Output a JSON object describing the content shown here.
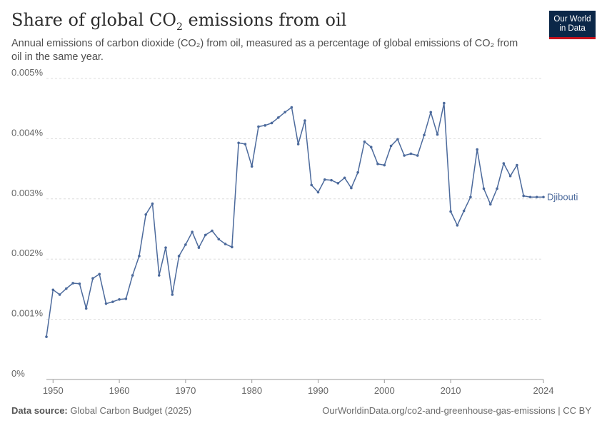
{
  "header": {
    "title_main": "Share of global CO",
    "title_sub": "2",
    "title_rest": " emissions from oil",
    "subtitle": "Annual emissions of carbon dioxide (CO₂) from oil, measured as a percentage of global emissions of CO₂ from oil in the same year."
  },
  "logo": {
    "line1": "Our World",
    "line2": "in Data"
  },
  "footer": {
    "source_label": "Data source:",
    "source_value": " Global Carbon Budget (2025)",
    "url": "OurWorldinData.org/co2-and-greenhouse-gas-emissions | CC BY"
  },
  "colors": {
    "series": "#4c6a9c",
    "grid": "#dddddd",
    "logo_bg": "#0b2748",
    "logo_accent": "#c4121c"
  },
  "chart_data": {
    "type": "line",
    "ylim": [
      0,
      0.005
    ],
    "xlim": [
      1949,
      2024
    ],
    "y_ticks": [
      0,
      0.001,
      0.002,
      0.003,
      0.004,
      0.005
    ],
    "y_tick_labels": [
      "0%",
      "0.001%",
      "0.002%",
      "0.003%",
      "0.004%",
      "0.005%"
    ],
    "x_ticks": [
      1950,
      1960,
      1970,
      1980,
      1990,
      2000,
      2010,
      2024
    ],
    "x_tick_labels": [
      "1950",
      "1960",
      "1970",
      "1980",
      "1990",
      "2000",
      "2010",
      "2024"
    ],
    "grid": "horizontal dashed",
    "series": [
      {
        "name": "Djibouti",
        "x": [
          1949,
          1950,
          1951,
          1952,
          1953,
          1954,
          1955,
          1956,
          1957,
          1958,
          1959,
          1960,
          1961,
          1962,
          1963,
          1964,
          1965,
          1966,
          1967,
          1968,
          1969,
          1970,
          1971,
          1972,
          1973,
          1974,
          1975,
          1976,
          1977,
          1978,
          1979,
          1980,
          1981,
          1982,
          1983,
          1984,
          1985,
          1986,
          1987,
          1988,
          1989,
          1990,
          1991,
          1992,
          1993,
          1994,
          1995,
          1996,
          1997,
          1998,
          1999,
          2000,
          2001,
          2002,
          2003,
          2004,
          2005,
          2006,
          2007,
          2008,
          2009,
          2010,
          2011,
          2012,
          2013,
          2014,
          2015,
          2016,
          2017,
          2018,
          2019,
          2020,
          2021,
          2022,
          2023,
          2024
        ],
        "values": [
          0.00071,
          0.00149,
          0.00141,
          0.00151,
          0.0016,
          0.00159,
          0.00118,
          0.00168,
          0.00175,
          0.00126,
          0.00129,
          0.00133,
          0.00134,
          0.00173,
          0.00205,
          0.00274,
          0.00292,
          0.00173,
          0.00219,
          0.00141,
          0.00205,
          0.00224,
          0.00245,
          0.00219,
          0.0024,
          0.00247,
          0.00233,
          0.00225,
          0.0022,
          0.00393,
          0.00391,
          0.00354,
          0.0042,
          0.00422,
          0.00426,
          0.00435,
          0.00444,
          0.00452,
          0.00391,
          0.0043,
          0.00323,
          0.00311,
          0.00332,
          0.00331,
          0.00326,
          0.00335,
          0.00318,
          0.00344,
          0.00395,
          0.00386,
          0.00358,
          0.00356,
          0.00388,
          0.00399,
          0.00372,
          0.00375,
          0.00372,
          0.00406,
          0.00444,
          0.00407,
          0.00459,
          0.00279,
          0.00256,
          0.0028,
          0.00303,
          0.00382,
          0.00317,
          0.00291,
          0.00317,
          0.00359,
          0.00338,
          0.00356,
          0.00305,
          0.00303,
          0.00303,
          0.00303
        ]
      }
    ]
  }
}
